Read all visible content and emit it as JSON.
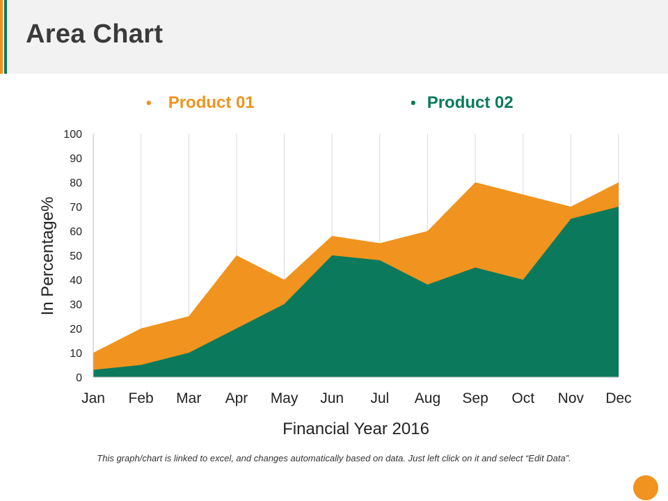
{
  "header": {
    "title": "Area Chart"
  },
  "colors": {
    "product_01": "#f0931f",
    "product_02": "#0b7a5c",
    "header_bg": "#f2f2f2"
  },
  "chart_data": {
    "type": "area",
    "title": "",
    "categories": [
      "Jan",
      "Feb",
      "Mar",
      "Apr",
      "May",
      "Jun",
      "Jul",
      "Aug",
      "Sep",
      "Oct",
      "Nov",
      "Dec"
    ],
    "series": [
      {
        "name": "Product 01",
        "values": [
          10,
          20,
          25,
          50,
          40,
          58,
          55,
          60,
          80,
          75,
          70,
          80
        ]
      },
      {
        "name": "Product 02",
        "values": [
          3,
          5,
          10,
          20,
          30,
          50,
          48,
          38,
          45,
          40,
          65,
          70
        ]
      }
    ],
    "xlabel": "Financial Year 2016",
    "ylabel": "In Percentage%",
    "ylim": [
      0,
      100
    ],
    "yticks": [
      "0",
      "10",
      "20",
      "30",
      "40",
      "50",
      "60",
      "70",
      "80",
      "90",
      "100"
    ],
    "grid": "vertical",
    "legend_position": "top"
  },
  "legend": {
    "item_1": "Product 01",
    "item_2": "Product 02",
    "bullet": "•"
  },
  "footnote": "This graph/chart is linked to excel, and changes automatically based on data. Just left click on it and select “Edit Data”."
}
